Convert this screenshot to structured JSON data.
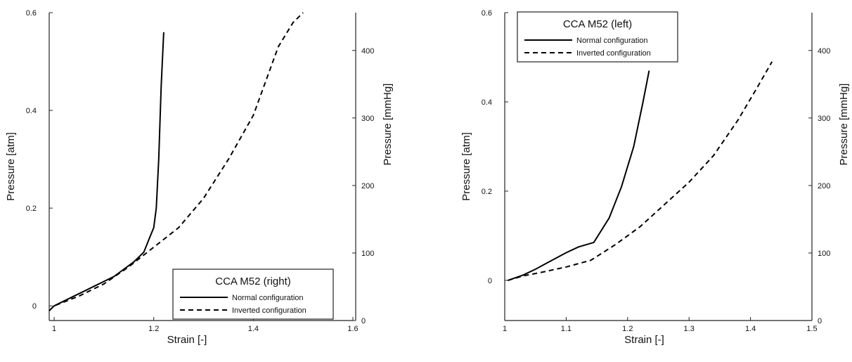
{
  "chart_data": [
    {
      "type": "line",
      "title": "",
      "legend_title": "CCA M52 (right)",
      "legend_placement": "bottom-right",
      "xlabel": "Strain [-]",
      "ylabel": "Pressure [atm]",
      "y2label": "Pressure [mmHg]",
      "xlim": [
        0.99,
        1.6
      ],
      "ylim": [
        -0.03,
        0.6
      ],
      "y2lim": [
        0,
        456
      ],
      "xticks": [
        "1",
        "1.2",
        "1.4",
        "1.6"
      ],
      "xtick_values": [
        1.0,
        1.2,
        1.4,
        1.6
      ],
      "yticks": [
        "0",
        "0.2",
        "0.4",
        "0.6"
      ],
      "ytick_values": [
        0,
        0.2,
        0.4,
        0.6
      ],
      "y2ticks": [
        "0",
        "100",
        "200",
        "300",
        "400"
      ],
      "y2tick_values": [
        0,
        100,
        200,
        300,
        400
      ],
      "grid": false,
      "series": [
        {
          "name": "Normal configuration",
          "style": "solid",
          "x": [
            0.99,
            1.0,
            1.02,
            1.04,
            1.06,
            1.08,
            1.1,
            1.12,
            1.14,
            1.16,
            1.18,
            1.19,
            1.2,
            1.205,
            1.21,
            1.215,
            1.22
          ],
          "y": [
            -0.01,
            0.0,
            0.01,
            0.02,
            0.03,
            0.04,
            0.05,
            0.06,
            0.075,
            0.09,
            0.11,
            0.135,
            0.16,
            0.2,
            0.3,
            0.45,
            0.56
          ]
        },
        {
          "name": "Inverted configuration",
          "style": "dashed",
          "x": [
            0.99,
            1.0,
            1.05,
            1.1,
            1.15,
            1.2,
            1.25,
            1.3,
            1.35,
            1.4,
            1.45,
            1.48,
            1.5
          ],
          "y": [
            -0.01,
            0.0,
            0.02,
            0.045,
            0.08,
            0.12,
            0.16,
            0.22,
            0.3,
            0.39,
            0.53,
            0.58,
            0.6
          ]
        }
      ]
    },
    {
      "type": "line",
      "title": "",
      "legend_title": "CCA M52 (left)",
      "legend_placement": "top-left",
      "xlabel": "Strain [-]",
      "ylabel": "Pressure [atm]",
      "y2label": "Pressure [mmHg]",
      "xlim": [
        1.0,
        1.5
      ],
      "ylim": [
        -0.09,
        0.6
      ],
      "y2lim": [
        0,
        456
      ],
      "xticks": [
        "1",
        "1.1",
        "1.2",
        "1.3",
        "1.4",
        "1.5"
      ],
      "xtick_values": [
        1.0,
        1.1,
        1.2,
        1.3,
        1.4,
        1.5
      ],
      "yticks": [
        "0",
        "0.2",
        "0.4",
        "0.6"
      ],
      "ytick_values": [
        0,
        0.2,
        0.4,
        0.6
      ],
      "y2ticks": [
        "0",
        "100",
        "200",
        "300",
        "400"
      ],
      "y2tick_values": [
        0,
        100,
        200,
        300,
        400
      ],
      "grid": false,
      "series": [
        {
          "name": "Normal configuration",
          "style": "solid",
          "x": [
            1.005,
            1.03,
            1.05,
            1.07,
            1.1,
            1.12,
            1.145,
            1.17,
            1.19,
            1.21,
            1.225,
            1.235
          ],
          "y": [
            0.0,
            0.012,
            0.025,
            0.04,
            0.062,
            0.075,
            0.085,
            0.14,
            0.21,
            0.3,
            0.4,
            0.47
          ]
        },
        {
          "name": "Inverted configuration",
          "style": "dashed",
          "x": [
            1.005,
            1.03,
            1.06,
            1.1,
            1.14,
            1.18,
            1.22,
            1.26,
            1.3,
            1.34,
            1.38,
            1.41,
            1.435
          ],
          "y": [
            0.0,
            0.01,
            0.018,
            0.03,
            0.045,
            0.08,
            0.12,
            0.17,
            0.22,
            0.28,
            0.36,
            0.43,
            0.49
          ]
        }
      ]
    }
  ]
}
